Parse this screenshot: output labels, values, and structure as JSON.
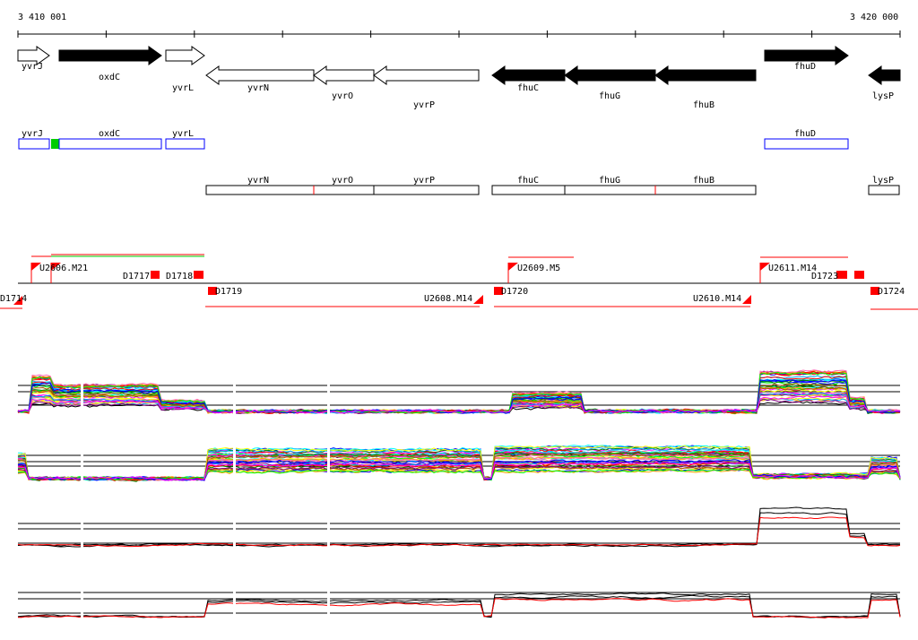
{
  "ruler": {
    "start_label": "3 410 001",
    "end_label": "3 420 000"
  },
  "genes": [
    {
      "name": "yvrJ",
      "strand": "+",
      "style": "white"
    },
    {
      "name": "oxdC",
      "strand": "+",
      "style": "black"
    },
    {
      "name": "yvrL",
      "strand": "+",
      "style": "white"
    },
    {
      "name": "yvrN",
      "strand": "-",
      "style": "white"
    },
    {
      "name": "yvrO",
      "strand": "-",
      "style": "white"
    },
    {
      "name": "yvrP",
      "strand": "-",
      "style": "white"
    },
    {
      "name": "fhuC",
      "strand": "-",
      "style": "black"
    },
    {
      "name": "fhuG",
      "strand": "-",
      "style": "black"
    },
    {
      "name": "fhuB",
      "strand": "-",
      "style": "black"
    },
    {
      "name": "fhuD",
      "strand": "+",
      "style": "black"
    },
    {
      "name": "lysP",
      "strand": "-",
      "style": "black"
    }
  ],
  "operons_plus": [
    "yvrJ",
    "oxdC",
    "yvrL",
    "fhuD"
  ],
  "operons_minus": [
    "yvrN",
    "yvrO",
    "yvrP",
    "fhuC",
    "fhuG",
    "fhuB",
    "lysP"
  ],
  "transcripts": {
    "t1": "U2606.M21",
    "t2": "D1717",
    "t3": "D1718",
    "t4": "D1719",
    "t5": "U2608.M14",
    "t6": "D1720",
    "t7": "U2609.M5",
    "t8": "U2610.M14",
    "t9": "U2611.M14",
    "t10": "D1723",
    "t11": "D1724",
    "t12": "D1714"
  },
  "colors": {
    "plus": "#0000ff",
    "minus": "#000000",
    "signal": "#ff0000",
    "start": "#00cc00"
  }
}
